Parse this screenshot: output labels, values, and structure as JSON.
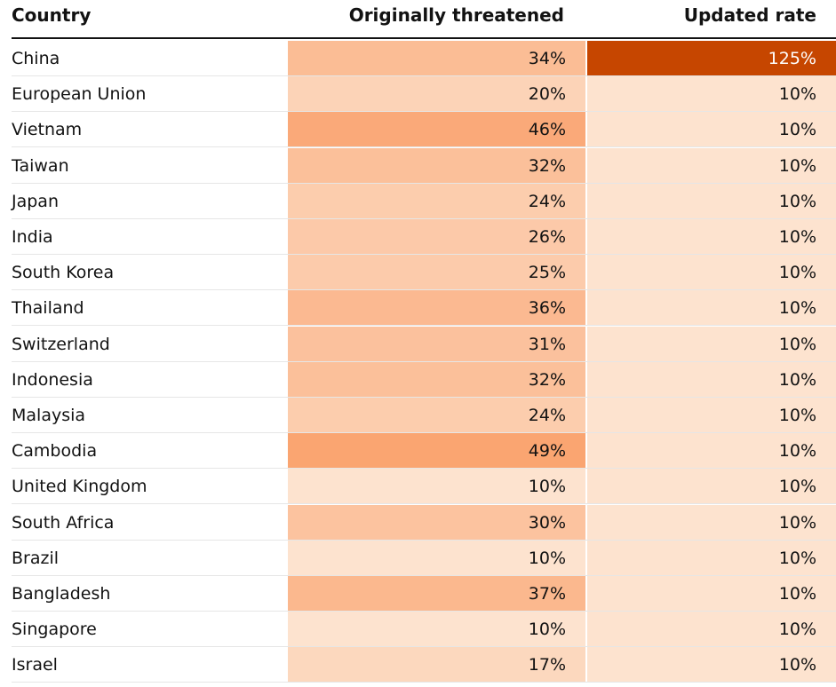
{
  "table": {
    "headers": {
      "country": "Country",
      "original": "Originally threatened",
      "updated": "Updated rate"
    }
  },
  "chart_data": {
    "type": "table",
    "columns": [
      "Country",
      "Originally threatened",
      "Updated rate"
    ],
    "rows": [
      {
        "country": "China",
        "original": 34,
        "updated": 125
      },
      {
        "country": "European Union",
        "original": 20,
        "updated": 10
      },
      {
        "country": "Vietnam",
        "original": 46,
        "updated": 10
      },
      {
        "country": "Taiwan",
        "original": 32,
        "updated": 10
      },
      {
        "country": "Japan",
        "original": 24,
        "updated": 10
      },
      {
        "country": "India",
        "original": 26,
        "updated": 10
      },
      {
        "country": "South Korea",
        "original": 25,
        "updated": 10
      },
      {
        "country": "Thailand",
        "original": 36,
        "updated": 10
      },
      {
        "country": "Switzerland",
        "original": 31,
        "updated": 10
      },
      {
        "country": "Indonesia",
        "original": 32,
        "updated": 10
      },
      {
        "country": "Malaysia",
        "original": 24,
        "updated": 10
      },
      {
        "country": "Cambodia",
        "original": 49,
        "updated": 10
      },
      {
        "country": "United Kingdom",
        "original": 10,
        "updated": 10
      },
      {
        "country": "South Africa",
        "original": 30,
        "updated": 10
      },
      {
        "country": "Brazil",
        "original": 10,
        "updated": 10
      },
      {
        "country": "Bangladesh",
        "original": 37,
        "updated": 10
      },
      {
        "country": "Singapore",
        "original": 10,
        "updated": 10
      },
      {
        "country": "Israel",
        "original": 17,
        "updated": 10
      }
    ],
    "value_suffix": "%",
    "color_scale": {
      "low": "#fde3cf",
      "mid": "#faa36f",
      "high": "#c64600"
    }
  }
}
